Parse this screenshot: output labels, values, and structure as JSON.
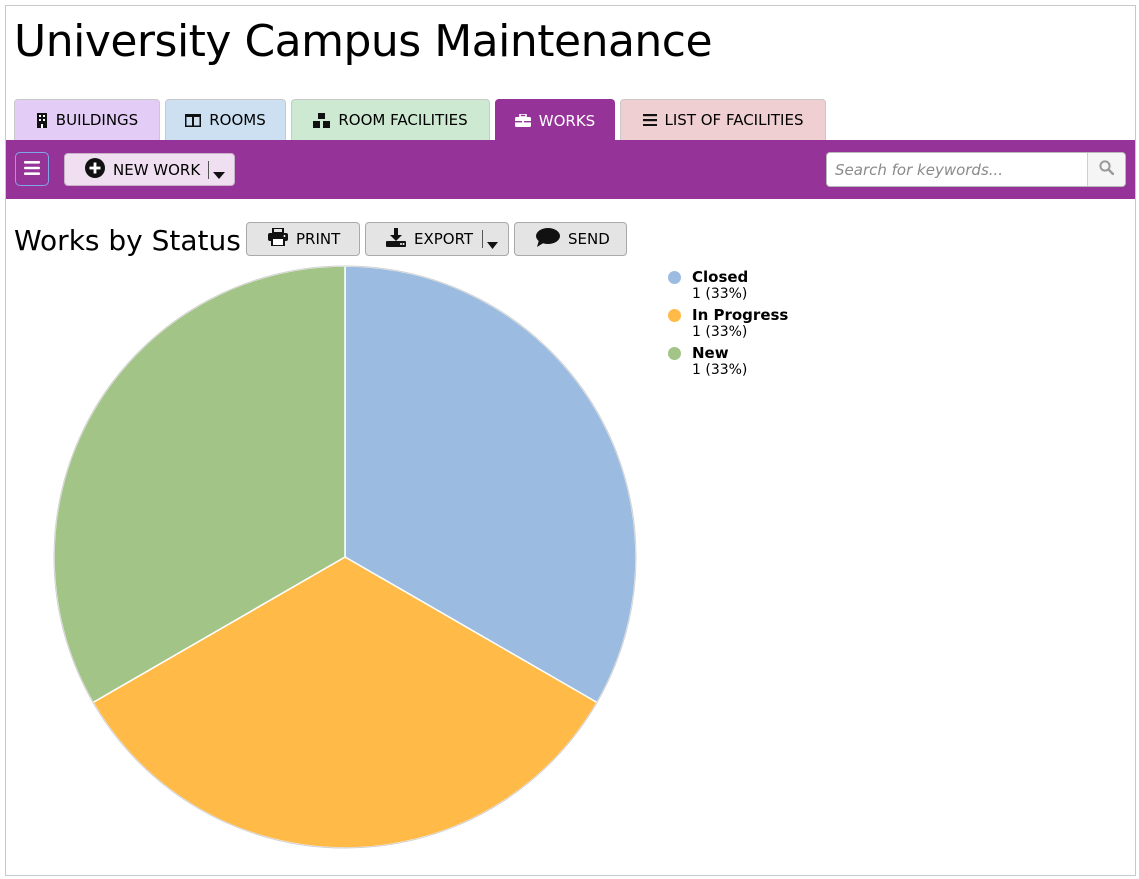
{
  "app": {
    "title": "University Campus Maintenance"
  },
  "tabs": [
    {
      "label": "BUILDINGS",
      "icon": "building-icon",
      "color": "#e3cdf6"
    },
    {
      "label": "ROOMS",
      "icon": "columns-icon",
      "color": "#cce0f2"
    },
    {
      "label": "ROOM FACILITIES",
      "icon": "cubes-icon",
      "color": "#cde9d2"
    },
    {
      "label": "WORKS",
      "icon": "toolbox-icon",
      "color": "#963399",
      "active": true
    },
    {
      "label": "LIST OF FACILITIES",
      "icon": "list-icon",
      "color": "#efcfd2"
    }
  ],
  "toolbar": {
    "background": "#963399",
    "menu_icon": "bars-icon",
    "new_work_label": "NEW WORK",
    "new_work_icon": "plus-circle-icon",
    "search_placeholder": "Search for keywords...",
    "search_icon": "search-icon"
  },
  "report": {
    "title": "Works by Status",
    "print_label": "PRINT",
    "export_label": "EXPORT",
    "send_label": "SEND"
  },
  "chart_data": {
    "type": "pie",
    "categories": [
      "Closed",
      "In Progress",
      "New"
    ],
    "values": [
      1,
      1,
      1
    ],
    "value_labels": [
      "1 (33%)",
      "1 (33%)",
      "1 (33%)"
    ],
    "colors": [
      "#9bbce0",
      "#ffba47",
      "#a3c487"
    ],
    "legend_position": "right"
  }
}
